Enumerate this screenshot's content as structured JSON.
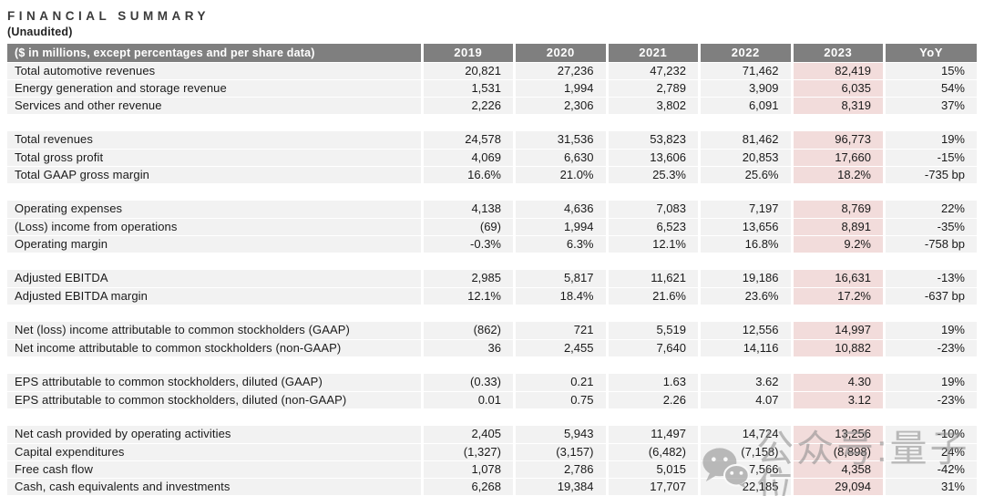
{
  "page": {
    "title": "FINANCIAL SUMMARY",
    "subtitle": "(Unaudited)"
  },
  "table": {
    "header_label": "($ in millions, except percentages and per share data)",
    "columns": [
      "2019",
      "2020",
      "2021",
      "2022",
      "2023",
      "YoY"
    ],
    "highlight_column": "2023",
    "sections": [
      {
        "rows": [
          {
            "label": "Total automotive revenues",
            "values": [
              "20,821",
              "27,236",
              "47,232",
              "71,462",
              "82,419",
              "15%"
            ]
          },
          {
            "label": "Energy generation and storage revenue",
            "values": [
              "1,531",
              "1,994",
              "2,789",
              "3,909",
              "6,035",
              "54%"
            ]
          },
          {
            "label": "Services and other revenue",
            "values": [
              "2,226",
              "2,306",
              "3,802",
              "6,091",
              "8,319",
              "37%"
            ]
          }
        ]
      },
      {
        "rows": [
          {
            "label": "Total revenues",
            "values": [
              "24,578",
              "31,536",
              "53,823",
              "81,462",
              "96,773",
              "19%"
            ]
          },
          {
            "label": "Total gross profit",
            "values": [
              "4,069",
              "6,630",
              "13,606",
              "20,853",
              "17,660",
              "-15%"
            ]
          },
          {
            "label": "Total GAAP gross margin",
            "values": [
              "16.6%",
              "21.0%",
              "25.3%",
              "25.6%",
              "18.2%",
              "-735 bp"
            ]
          }
        ]
      },
      {
        "rows": [
          {
            "label": "Operating expenses",
            "values": [
              "4,138",
              "4,636",
              "7,083",
              "7,197",
              "8,769",
              "22%"
            ]
          },
          {
            "label": "(Loss) income from operations",
            "values": [
              "(69)",
              "1,994",
              "6,523",
              "13,656",
              "8,891",
              "-35%"
            ]
          },
          {
            "label": "Operating margin",
            "values": [
              "-0.3%",
              "6.3%",
              "12.1%",
              "16.8%",
              "9.2%",
              "-758 bp"
            ]
          }
        ]
      },
      {
        "rows": [
          {
            "label": "Adjusted EBITDA",
            "values": [
              "2,985",
              "5,817",
              "11,621",
              "19,186",
              "16,631",
              "-13%"
            ]
          },
          {
            "label": "Adjusted EBITDA margin",
            "values": [
              "12.1%",
              "18.4%",
              "21.6%",
              "23.6%",
              "17.2%",
              "-637 bp"
            ]
          }
        ]
      },
      {
        "rows": [
          {
            "label": "Net (loss) income attributable to common stockholders (GAAP)",
            "values": [
              "(862)",
              "721",
              "5,519",
              "12,556",
              "14,997",
              "19%"
            ]
          },
          {
            "label": "Net income attributable to common stockholders (non-GAAP)",
            "values": [
              "36",
              "2,455",
              "7,640",
              "14,116",
              "10,882",
              "-23%"
            ]
          }
        ]
      },
      {
        "rows": [
          {
            "label": "EPS attributable to common stockholders, diluted (GAAP)",
            "values": [
              "(0.33)",
              "0.21",
              "1.63",
              "3.62",
              "4.30",
              "19%"
            ]
          },
          {
            "label": "EPS attributable to common stockholders, diluted (non-GAAP)",
            "values": [
              "0.01",
              "0.75",
              "2.26",
              "4.07",
              "3.12",
              "-23%"
            ]
          }
        ]
      },
      {
        "rows": [
          {
            "label": "Net cash provided by operating activities",
            "values": [
              "2,405",
              "5,943",
              "11,497",
              "14,724",
              "13,256",
              "-10%"
            ]
          },
          {
            "label": "Capital expenditures",
            "values": [
              "(1,327)",
              "(3,157)",
              "(6,482)",
              "(7,158)",
              "(8,898)",
              "24%"
            ]
          },
          {
            "label": "Free cash flow",
            "values": [
              "1,078",
              "2,786",
              "5,015",
              "7,566",
              "4,358",
              "-42%"
            ]
          },
          {
            "label": "Cash, cash equivalents and investments",
            "values": [
              "6,268",
              "19,384",
              "17,707",
              "22,185",
              "29,094",
              "31%"
            ]
          }
        ]
      }
    ]
  },
  "watermark": {
    "icon": "wechat-icon",
    "text": "公众号:量子位"
  },
  "colors": {
    "header_bg": "#7f7f7f",
    "row_bg": "#f2f2f2",
    "highlight_bg": "#f2dcdb",
    "text_color": "#1a1a1a",
    "watermark_color": "#8a8a8a"
  }
}
